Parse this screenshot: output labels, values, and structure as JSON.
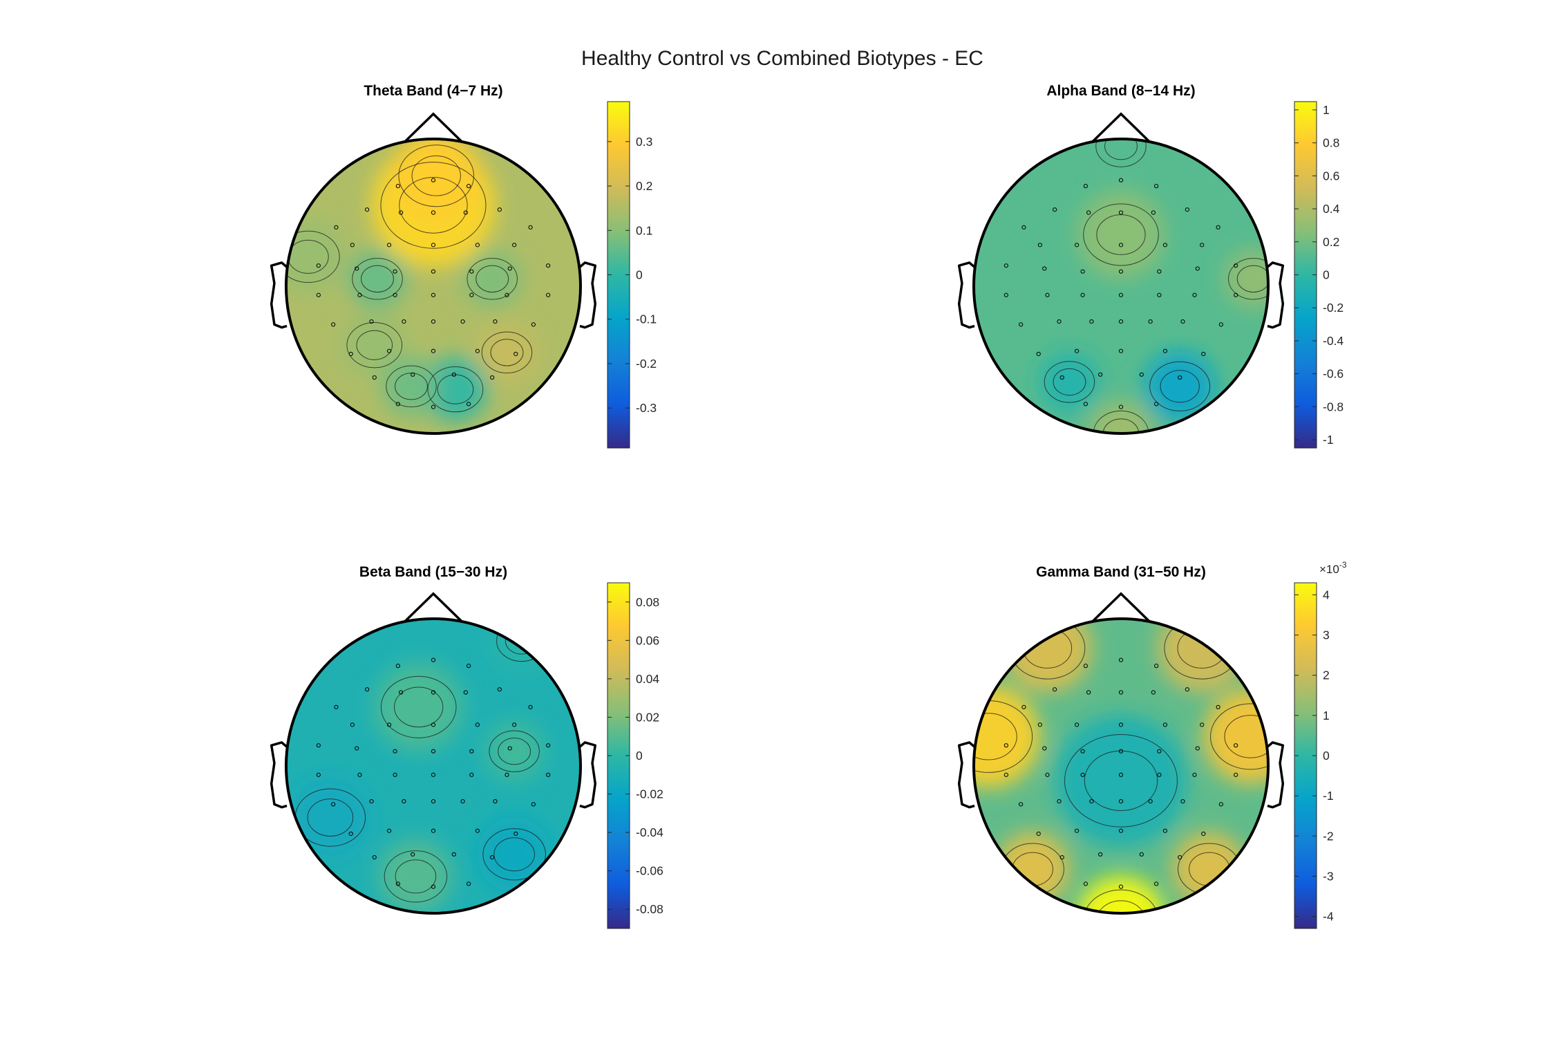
{
  "figure": {
    "title": "Healthy Control vs Combined Biotypes - EC"
  },
  "colors": {
    "parula": [
      "#352a87",
      "#0f5cdd",
      "#1481d6",
      "#06a4ca",
      "#2eb7a4",
      "#87bf77",
      "#d1bb59",
      "#fec832",
      "#f9fb0e"
    ]
  },
  "chart_data": [
    {
      "type": "heatmap",
      "subtype": "topographic-scalp-map",
      "title": "Theta Band (4−7 Hz)",
      "clim": [
        -0.39,
        0.39
      ],
      "colorbar_ticks": [
        0.3,
        0.2,
        0.1,
        0,
        -0.1,
        -0.2,
        -0.3
      ],
      "colorbar_tick_labels": [
        "0.3",
        "0.2",
        "0.1",
        "0",
        "-0.1",
        "-0.2",
        "-0.3"
      ],
      "colorbar_exponent": "",
      "background_value": 0.15,
      "blobs": [
        {
          "x": 0.0,
          "y": 0.55,
          "value": 0.32,
          "radius": 0.42
        },
        {
          "x": 0.02,
          "y": 0.75,
          "value": 0.3,
          "radius": 0.3
        },
        {
          "x": -0.38,
          "y": 0.05,
          "value": 0.06,
          "radius": 0.2
        },
        {
          "x": 0.4,
          "y": 0.05,
          "value": 0.09,
          "radius": 0.2
        },
        {
          "x": -0.4,
          "y": -0.4,
          "value": 0.12,
          "radius": 0.22
        },
        {
          "x": 0.15,
          "y": -0.7,
          "value": 0.0,
          "radius": 0.22
        },
        {
          "x": -0.15,
          "y": -0.68,
          "value": 0.07,
          "radius": 0.2
        },
        {
          "x": 0.5,
          "y": -0.45,
          "value": 0.18,
          "radius": 0.2
        },
        {
          "x": -0.85,
          "y": 0.2,
          "value": 0.12,
          "radius": 0.25
        }
      ]
    },
    {
      "type": "heatmap",
      "subtype": "topographic-scalp-map",
      "title": "Alpha Band (8−14 Hz)",
      "clim": [
        -1.05,
        1.05
      ],
      "colorbar_ticks": [
        1,
        0.8,
        0.6,
        0.4,
        0.2,
        0,
        -0.2,
        -0.4,
        -0.6,
        -0.8,
        -1
      ],
      "colorbar_tick_labels": [
        "1",
        "0.8",
        "0.6",
        "0.4",
        "0.2",
        "0",
        "-0.2",
        "-0.4",
        "-0.6",
        "-0.8",
        "-1"
      ],
      "colorbar_exponent": "",
      "background_value": 0.12,
      "blobs": [
        {
          "x": 0.0,
          "y": 0.35,
          "value": 0.28,
          "radius": 0.3
        },
        {
          "x": 0.9,
          "y": 0.05,
          "value": 0.3,
          "radius": 0.2
        },
        {
          "x": 0.4,
          "y": -0.68,
          "value": -0.25,
          "radius": 0.24
        },
        {
          "x": -0.35,
          "y": -0.65,
          "value": -0.06,
          "radius": 0.2
        },
        {
          "x": 0.0,
          "y": -1.0,
          "value": 0.35,
          "radius": 0.22
        },
        {
          "x": 0.0,
          "y": 0.95,
          "value": 0.12,
          "radius": 0.2
        }
      ]
    },
    {
      "type": "heatmap",
      "subtype": "topographic-scalp-map",
      "title": "Beta Band (15−30 Hz)",
      "clim": [
        -0.09,
        0.09
      ],
      "colorbar_ticks": [
        0.08,
        0.06,
        0.04,
        0.02,
        0,
        -0.02,
        -0.04,
        -0.06,
        -0.08
      ],
      "colorbar_tick_labels": [
        "0.08",
        "0.06",
        "0.04",
        "0.02",
        "0",
        "-0.02",
        "-0.04",
        "-0.06",
        "-0.08"
      ],
      "colorbar_exponent": "",
      "background_value": -0.008,
      "blobs": [
        {
          "x": -0.1,
          "y": 0.4,
          "value": 0.008,
          "radius": 0.3
        },
        {
          "x": -0.12,
          "y": -0.75,
          "value": 0.01,
          "radius": 0.25
        },
        {
          "x": 0.55,
          "y": 0.1,
          "value": 0.005,
          "radius": 0.2
        },
        {
          "x": -0.7,
          "y": -0.35,
          "value": -0.015,
          "radius": 0.28
        },
        {
          "x": 0.55,
          "y": -0.6,
          "value": -0.016,
          "radius": 0.25
        },
        {
          "x": 0.6,
          "y": 0.85,
          "value": -0.004,
          "radius": 0.2
        }
      ]
    },
    {
      "type": "heatmap",
      "subtype": "topographic-scalp-map",
      "title": "Gamma Band (31−50 Hz)",
      "clim": [
        -4.3,
        4.3
      ],
      "colorbar_ticks": [
        4,
        3,
        2,
        1,
        0,
        -1,
        -2,
        -3,
        -4
      ],
      "colorbar_tick_labels": [
        "4",
        "3",
        "2",
        "1",
        "0",
        "-1",
        "-2",
        "-3",
        "-4"
      ],
      "colorbar_exponent": "-3",
      "background_value": 0.6,
      "blobs": [
        {
          "x": -0.9,
          "y": 0.2,
          "value": 3.4,
          "radius": 0.35
        },
        {
          "x": 0.88,
          "y": 0.2,
          "value": 3.0,
          "radius": 0.32
        },
        {
          "x": -0.5,
          "y": 0.8,
          "value": 2.4,
          "radius": 0.3
        },
        {
          "x": 0.55,
          "y": 0.8,
          "value": 2.2,
          "radius": 0.3
        },
        {
          "x": 0.0,
          "y": -1.05,
          "value": 4.5,
          "radius": 0.3
        },
        {
          "x": -0.6,
          "y": -0.7,
          "value": 2.6,
          "radius": 0.25
        },
        {
          "x": 0.6,
          "y": -0.7,
          "value": 2.5,
          "radius": 0.25
        },
        {
          "x": 0.0,
          "y": -0.1,
          "value": -0.4,
          "radius": 0.45
        }
      ]
    }
  ]
}
